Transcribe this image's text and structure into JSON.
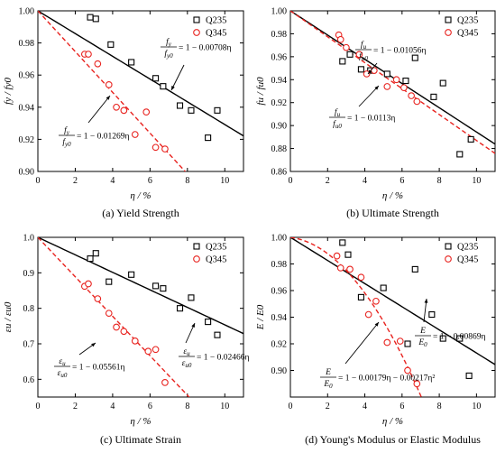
{
  "chart_data": [
    {
      "type": "scatter",
      "caption": "(a) Yield Strength",
      "xlabel": "η / %",
      "ylabel": "fy / fy0",
      "xlim": [
        0,
        11
      ],
      "ylim": [
        0.9,
        1.0
      ],
      "xticks": [
        "0",
        "2",
        "4",
        "6",
        "8",
        "10"
      ],
      "yticks": [
        "0.90",
        "0.92",
        "0.94",
        "0.96",
        "0.98",
        "1.00"
      ],
      "legend": {
        "position": "top-right"
      },
      "series": [
        {
          "name": "Q235",
          "marker": "square",
          "color": "#000000",
          "points": [
            [
              2.8,
              0.996
            ],
            [
              3.1,
              0.995
            ],
            [
              3.9,
              0.979
            ],
            [
              5.0,
              0.968
            ],
            [
              6.3,
              0.958
            ],
            [
              6.7,
              0.953
            ],
            [
              7.6,
              0.941
            ],
            [
              8.2,
              0.938
            ],
            [
              9.1,
              0.921
            ],
            [
              9.6,
              0.938
            ]
          ]
        },
        {
          "name": "Q345",
          "marker": "circle",
          "color": "#e8231f",
          "points": [
            [
              2.5,
              0.973
            ],
            [
              2.7,
              0.973
            ],
            [
              3.2,
              0.967
            ],
            [
              3.8,
              0.954
            ],
            [
              4.2,
              0.94
            ],
            [
              4.6,
              0.938
            ],
            [
              5.2,
              0.923
            ],
            [
              5.8,
              0.937
            ],
            [
              6.3,
              0.915
            ],
            [
              6.8,
              0.914
            ]
          ]
        }
      ],
      "fits": [
        {
          "series": "Q235",
          "slope": -0.00708,
          "color": "#000000",
          "dash": false,
          "x_range": [
            0,
            11
          ]
        },
        {
          "series": "Q345",
          "slope": -0.01269,
          "color": "#e8231f",
          "dash": true,
          "x_range": [
            0,
            7.9
          ]
        }
      ],
      "equations": [
        {
          "num": "f",
          "num_sub": "y",
          "den": "f",
          "den_sub": "y0",
          "rhs": "= 1 − 0.00708η"
        },
        {
          "num": "f",
          "num_sub": "y",
          "den": "f",
          "den_sub": "y0",
          "rhs": "= 1 − 0.01269η"
        }
      ]
    },
    {
      "type": "scatter",
      "caption": "(b) Ultimate Strength",
      "xlabel": "η / %",
      "ylabel": "fu / fu0",
      "xlim": [
        0,
        11
      ],
      "ylim": [
        0.86,
        1.0
      ],
      "xticks": [
        "0",
        "2",
        "4",
        "6",
        "8",
        "10"
      ],
      "yticks": [
        "0.86",
        "0.88",
        "0.90",
        "0.92",
        "0.94",
        "0.96",
        "0.98",
        "1.00"
      ],
      "legend": {
        "position": "top-right"
      },
      "series": [
        {
          "name": "Q235",
          "marker": "square",
          "color": "#000000",
          "points": [
            [
              2.8,
              0.956
            ],
            [
              3.2,
              0.962
            ],
            [
              3.8,
              0.949
            ],
            [
              4.3,
              0.948
            ],
            [
              5.2,
              0.945
            ],
            [
              6.2,
              0.939
            ],
            [
              6.7,
              0.959
            ],
            [
              7.7,
              0.925
            ],
            [
              8.2,
              0.937
            ],
            [
              9.1,
              0.875
            ],
            [
              9.7,
              0.888
            ]
          ]
        },
        {
          "name": "Q345",
          "marker": "circle",
          "color": "#e8231f",
          "points": [
            [
              2.6,
              0.979
            ],
            [
              2.7,
              0.975
            ],
            [
              3.0,
              0.968
            ],
            [
              3.7,
              0.962
            ],
            [
              4.1,
              0.945
            ],
            [
              4.5,
              0.948
            ],
            [
              5.2,
              0.934
            ],
            [
              5.7,
              0.94
            ],
            [
              6.1,
              0.933
            ],
            [
              6.5,
              0.926
            ],
            [
              6.8,
              0.921
            ]
          ]
        }
      ],
      "fits": [
        {
          "series": "Q235",
          "slope": -0.01056,
          "color": "#000000",
          "dash": false,
          "x_range": [
            0,
            11
          ]
        },
        {
          "series": "Q345",
          "slope": -0.0113,
          "color": "#e8231f",
          "dash": true,
          "x_range": [
            0,
            11
          ]
        }
      ],
      "equations": [
        {
          "num": "f",
          "num_sub": "u",
          "den": "f",
          "den_sub": "u0",
          "rhs": "= 1 − 0.01056η"
        },
        {
          "num": "f",
          "num_sub": "u",
          "den": "f",
          "den_sub": "u0",
          "rhs": "= 1 − 0.0113η"
        }
      ]
    },
    {
      "type": "scatter",
      "caption": "(c) Ultimate Strain",
      "xlabel": "η / %",
      "ylabel": "εu / εu0",
      "xlim": [
        0,
        11
      ],
      "ylim": [
        0.55,
        1.0
      ],
      "xticks": [
        "0",
        "2",
        "4",
        "6",
        "8",
        "10"
      ],
      "yticks": [
        "0.6",
        "0.7",
        "0.8",
        "0.9",
        "1.0"
      ],
      "legend": {
        "position": "top-right"
      },
      "series": [
        {
          "name": "Q235",
          "marker": "square",
          "color": "#000000",
          "points": [
            [
              2.8,
              0.94
            ],
            [
              3.1,
              0.955
            ],
            [
              3.8,
              0.875
            ],
            [
              5.0,
              0.895
            ],
            [
              6.3,
              0.863
            ],
            [
              6.7,
              0.856
            ],
            [
              7.6,
              0.8
            ],
            [
              8.2,
              0.83
            ],
            [
              9.1,
              0.762
            ],
            [
              9.6,
              0.725
            ]
          ]
        },
        {
          "name": "Q345",
          "marker": "circle",
          "color": "#e8231f",
          "points": [
            [
              2.5,
              0.862
            ],
            [
              2.7,
              0.869
            ],
            [
              3.2,
              0.827
            ],
            [
              3.8,
              0.786
            ],
            [
              4.2,
              0.747
            ],
            [
              4.6,
              0.735
            ],
            [
              5.2,
              0.708
            ],
            [
              5.9,
              0.679
            ],
            [
              6.3,
              0.684
            ],
            [
              6.8,
              0.591
            ]
          ]
        }
      ],
      "fits": [
        {
          "series": "Q235",
          "slope": -0.02466,
          "color": "#000000",
          "dash": false,
          "x_range": [
            0,
            11
          ]
        },
        {
          "series": "Q345",
          "slope": -0.05561,
          "color": "#e8231f",
          "dash": true,
          "x_range": [
            0,
            8.1
          ]
        }
      ],
      "equations": [
        {
          "num": "ε",
          "num_sub": "u",
          "den": "ε",
          "den_sub": "u0",
          "rhs": "= 1 − 0.05561η"
        },
        {
          "num": "ε",
          "num_sub": "u",
          "den": "ε",
          "den_sub": "u0",
          "rhs": "= 1 − 0.02466η"
        }
      ]
    },
    {
      "type": "scatter",
      "caption": "(d) Young's Modulus or Elastic Modulus",
      "xlabel": "η / %",
      "ylabel": "E / E0",
      "xlim": [
        0,
        11
      ],
      "ylim": [
        0.88,
        1.0
      ],
      "xticks": [
        "0",
        "2",
        "4",
        "6",
        "8",
        "10"
      ],
      "yticks": [
        "0.90",
        "0.92",
        "0.94",
        "0.96",
        "0.98",
        "1.00"
      ],
      "legend": {
        "position": "top-right"
      },
      "series": [
        {
          "name": "Q235",
          "marker": "square",
          "color": "#000000",
          "points": [
            [
              2.8,
              0.996
            ],
            [
              3.1,
              0.987
            ],
            [
              3.8,
              0.955
            ],
            [
              5.0,
              0.962
            ],
            [
              6.3,
              0.92
            ],
            [
              6.7,
              0.976
            ],
            [
              7.6,
              0.942
            ],
            [
              8.2,
              0.924
            ],
            [
              9.1,
              0.924
            ],
            [
              9.6,
              0.896
            ]
          ]
        },
        {
          "name": "Q345",
          "marker": "circle",
          "color": "#e8231f",
          "points": [
            [
              2.5,
              0.986
            ],
            [
              2.7,
              0.977
            ],
            [
              3.2,
              0.976
            ],
            [
              3.8,
              0.97
            ],
            [
              4.2,
              0.942
            ],
            [
              4.6,
              0.952
            ],
            [
              5.2,
              0.921
            ],
            [
              5.9,
              0.922
            ],
            [
              6.3,
              0.9
            ],
            [
              6.8,
              0.89
            ]
          ]
        }
      ],
      "fits": [
        {
          "series": "Q235",
          "slope": -0.00869,
          "color": "#000000",
          "dash": false,
          "x_range": [
            0,
            11
          ]
        },
        {
          "series": "Q345",
          "a": -0.00179,
          "b": -0.00217,
          "color": "#e8231f",
          "dash": true,
          "x_range": [
            0,
            7.05
          ]
        }
      ],
      "equations": [
        {
          "num": "E",
          "num_sub": "",
          "den": "E",
          "den_sub": "0",
          "rhs": "= 1 − 0.00869η"
        },
        {
          "num": "E",
          "num_sub": "",
          "den": "E",
          "den_sub": "0",
          "rhs": "= 1 − 0.00179η − 0.00217η²"
        }
      ]
    }
  ]
}
